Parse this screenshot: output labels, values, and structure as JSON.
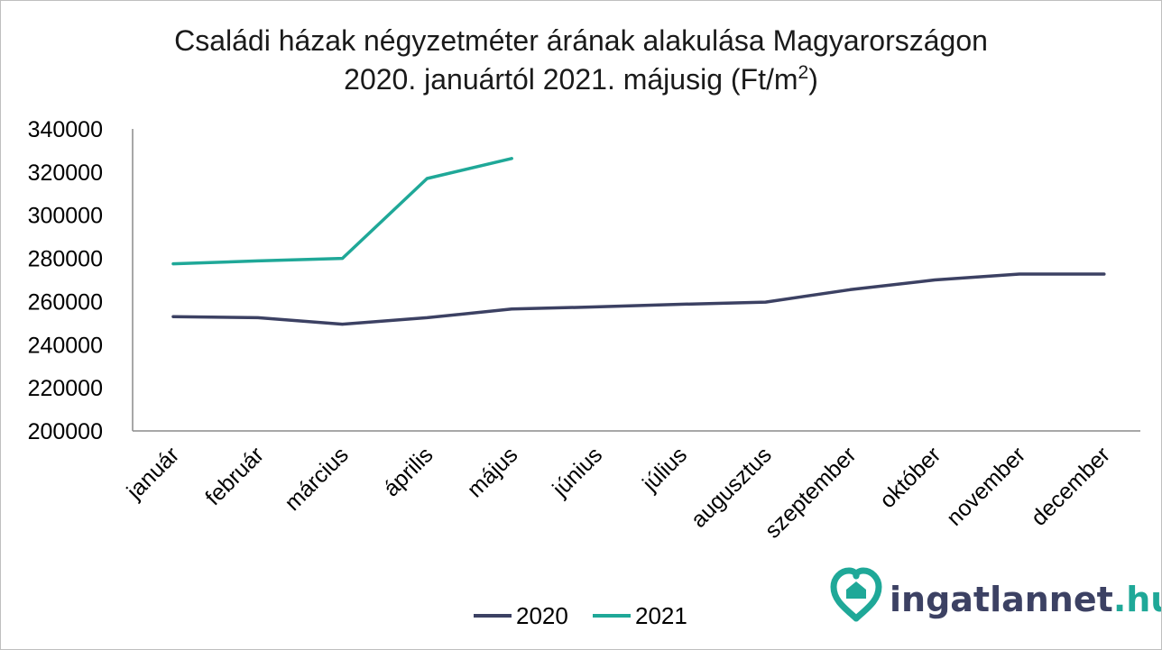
{
  "chart_data": {
    "type": "line",
    "title_line1": "Családi házak négyzetméter árának alakulása Magyarországon",
    "title_line2_main": "2020. januártól 2021. májusig (Ft/m",
    "title_line2_sup": "2",
    "title_line2_end": ")",
    "categories": [
      "január",
      "február",
      "március",
      "április",
      "május",
      "június",
      "július",
      "augusztus",
      "szeptember",
      "október",
      "november",
      "december"
    ],
    "ylim": [
      200000,
      340000
    ],
    "yticks": [
      "340000",
      "320000",
      "300000",
      "280000",
      "260000",
      "240000",
      "220000",
      "200000"
    ],
    "grid": false,
    "legend_position": "bottom",
    "series": [
      {
        "name": "2020",
        "color": "#3c4163",
        "values": [
          253000,
          252500,
          249500,
          252500,
          256500,
          257500,
          258700,
          259700,
          265500,
          270000,
          272700,
          272700
        ]
      },
      {
        "name": "2021",
        "color": "#1fa898",
        "values": [
          277500,
          278800,
          280000,
          317000,
          326300,
          null,
          null,
          null,
          null,
          null,
          null,
          null
        ]
      }
    ]
  },
  "logo": {
    "name": "ingatlannet",
    "tld": ".hu",
    "name_color": "#3c4163",
    "tld_color": "#1fa898",
    "icon": "heart-house-icon"
  }
}
